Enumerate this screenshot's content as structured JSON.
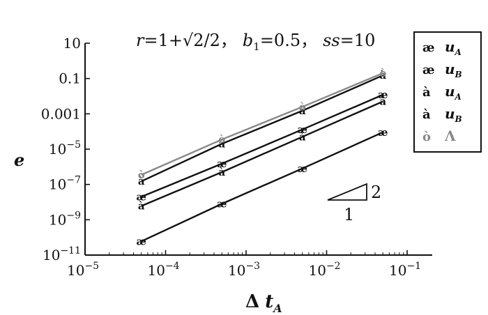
{
  "chart_data": {
    "type": "line",
    "title": "r=1+√2/2， b1=0.5， ss=10",
    "title_parts": {
      "r_label": "r",
      "r_value": "=1+√2/2，",
      "b_label": "b",
      "b_sub": "1",
      "b_value": "=0.5，",
      "ss_label": "ss",
      "ss_value": "=10"
    },
    "xlabel": "Δ t_A",
    "xlabel_parts": {
      "delta": "Δ",
      "t": "t",
      "sub": "A"
    },
    "ylabel": "e",
    "x_scale": "log",
    "y_scale": "log",
    "xlim": [
      1e-05,
      0.2
    ],
    "ylim": [
      1e-11,
      10
    ],
    "x_ticks": [
      {
        "value": 1e-05,
        "base": "10",
        "exp": "−5"
      },
      {
        "value": 0.0001,
        "base": "10",
        "exp": "−4"
      },
      {
        "value": 0.001,
        "base": "10",
        "exp": "−3"
      },
      {
        "value": 0.01,
        "base": "10",
        "exp": "−2"
      },
      {
        "value": 0.1,
        "base": "10",
        "exp": "−1"
      }
    ],
    "y_ticks": [
      {
        "value": 10,
        "base": "10",
        "exp": ""
      },
      {
        "value": 0.1,
        "base": "0.1",
        "exp": ""
      },
      {
        "value": 0.001,
        "base": "0.001",
        "exp": ""
      },
      {
        "value": 1e-05,
        "base": "10",
        "exp": "−5"
      },
      {
        "value": 1e-07,
        "base": "10",
        "exp": "−7"
      },
      {
        "value": 1e-09,
        "base": "10",
        "exp": "−9"
      },
      {
        "value": 1e-11,
        "base": "10",
        "exp": "−11"
      }
    ],
    "grid": false,
    "legend_position": "right",
    "x": [
      5e-05,
      0.0005,
      0.005,
      0.05
    ],
    "series": [
      {
        "symbol": "æ",
        "label": "u",
        "sub": "A",
        "color": "#111111",
        "values": [
          6e-11,
          8e-09,
          8e-07,
          9e-05
        ]
      },
      {
        "symbol": "æ",
        "label": "u",
        "sub": "B",
        "color": "#111111",
        "values": [
          2e-08,
          1.5e-06,
          0.00013,
          0.012
        ]
      },
      {
        "symbol": "à",
        "label": "u",
        "sub": "A",
        "color": "#111111",
        "values": [
          1.5e-07,
          2e-05,
          0.0015,
          0.15
        ]
      },
      {
        "symbol": "à",
        "label": "u",
        "sub": "B",
        "color": "#111111",
        "values": [
          6e-09,
          5e-07,
          5e-05,
          0.005
        ]
      },
      {
        "symbol": "ò",
        "label": "Λ",
        "sub": "",
        "color": "#888888",
        "values": [
          3.5e-07,
          3.5e-05,
          0.0025,
          0.2
        ]
      }
    ],
    "slope_triangle": {
      "run_label": "1",
      "rise_label": "2"
    }
  }
}
